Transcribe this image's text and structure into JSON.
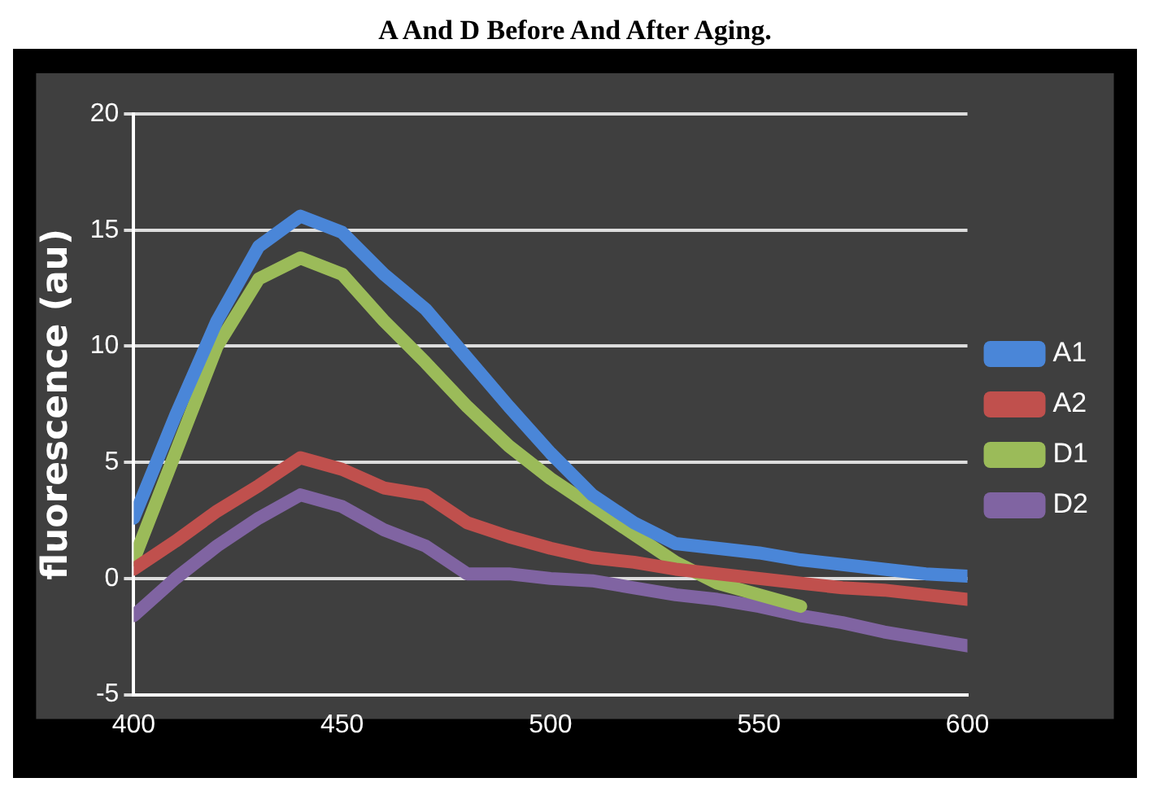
{
  "chart_data": {
    "type": "line",
    "title": "A And D Before And After Aging.",
    "ylabel": "fluorescence (au)",
    "x": [
      400,
      410,
      420,
      430,
      440,
      450,
      460,
      470,
      480,
      490,
      500,
      510,
      520,
      530,
      540,
      550,
      560,
      570,
      580,
      590,
      600
    ],
    "series": [
      {
        "name": "A1",
        "color": "#4a86d8",
        "values": [
          2.6,
          7,
          11.1,
          14.3,
          15.6,
          14.9,
          13.1,
          11.6,
          9.5,
          7.4,
          5.4,
          3.6,
          2.4,
          1.5,
          1.3,
          1.1,
          0.8,
          0.6,
          0.4,
          0.2,
          0.1
        ]
      },
      {
        "name": "A2",
        "color": "#c0504d",
        "values": [
          0.4,
          1.6,
          2.9,
          4,
          5.2,
          4.7,
          3.9,
          3.6,
          2.4,
          1.8,
          1.3,
          0.9,
          0.7,
          0.4,
          0.2,
          0,
          -0.2,
          -0.4,
          -0.5,
          -0.7,
          -0.9
        ]
      },
      {
        "name": "D1",
        "color": "#9bbb59",
        "values": [
          0.8,
          5.4,
          10,
          12.9,
          13.8,
          13.1,
          11.1,
          9.3,
          7.4,
          5.7,
          4.3,
          3.1,
          1.9,
          0.7,
          -0.2,
          -0.7,
          -1.2,
          null,
          null,
          null,
          null
        ]
      },
      {
        "name": "D2",
        "color": "#8064a2",
        "values": [
          -1.6,
          0,
          1.4,
          2.6,
          3.6,
          3.1,
          2.1,
          1.4,
          0.2,
          0.2,
          0,
          -0.1,
          -0.4,
          -0.7,
          -0.9,
          -1.2,
          -1.6,
          -1.9,
          -2.3,
          -2.6,
          -2.9
        ]
      }
    ],
    "xlim": [
      400,
      600
    ],
    "xticks": [
      400,
      450,
      500,
      550,
      600
    ],
    "ylim": [
      -5,
      20
    ],
    "yticks": [
      -5,
      0,
      5,
      10,
      15,
      20
    ],
    "grid": "y",
    "legend": "right",
    "marker": "none",
    "line_style": "solid"
  }
}
